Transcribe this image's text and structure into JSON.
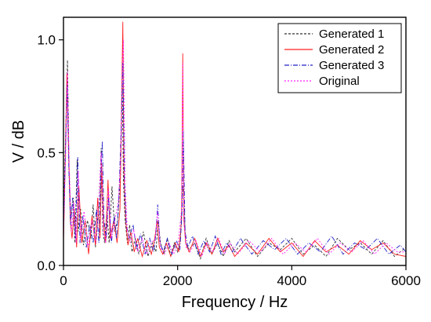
{
  "chart_data": {
    "type": "line",
    "xlabel": "Frequency / Hz",
    "ylabel": "V / dB",
    "xlim": [
      0,
      6000
    ],
    "ylim": [
      0,
      1.1
    ],
    "x_ticks": [
      0,
      2000,
      4000,
      6000
    ],
    "x_tick_labels": [
      "0",
      "2000",
      "4000",
      "6000"
    ],
    "y_ticks": [
      0.0,
      0.5,
      1.0
    ],
    "y_tick_labels": [
      "0.0",
      "0.5",
      "1.0"
    ],
    "grid": false,
    "legend_position": "top-right",
    "series": [
      {
        "name": "Generated 1",
        "color": "#303030",
        "dash": "3,2",
        "x": [
          0,
          40,
          70,
          100,
          130,
          170,
          200,
          240,
          260,
          300,
          350,
          420,
          480,
          520,
          560,
          600,
          640,
          660,
          690,
          720,
          760,
          800,
          850,
          900,
          950,
          1000,
          1030,
          1050,
          1080,
          1120,
          1160,
          1200,
          1260,
          1320,
          1400,
          1480,
          1560,
          1620,
          1660,
          1700,
          1760,
          1820,
          1880,
          1940,
          2000,
          2050,
          2080,
          2100,
          2140,
          2200,
          2300,
          2400,
          2500,
          2600,
          2700,
          2800,
          2900,
          3000,
          3200,
          3400,
          3600,
          3800,
          4000,
          4200,
          4400,
          4600,
          4800,
          5000,
          5200,
          5400,
          5600,
          5800,
          6000
        ],
        "y": [
          0.22,
          0.6,
          0.91,
          0.4,
          0.2,
          0.3,
          0.1,
          0.47,
          0.15,
          0.25,
          0.09,
          0.2,
          0.12,
          0.27,
          0.08,
          0.2,
          0.3,
          0.52,
          0.15,
          0.1,
          0.24,
          0.1,
          0.35,
          0.15,
          0.2,
          0.4,
          0.8,
          0.38,
          0.2,
          0.1,
          0.18,
          0.06,
          0.12,
          0.05,
          0.15,
          0.04,
          0.1,
          0.06,
          0.2,
          0.1,
          0.05,
          0.12,
          0.04,
          0.1,
          0.06,
          0.12,
          0.3,
          0.35,
          0.1,
          0.07,
          0.1,
          0.03,
          0.12,
          0.05,
          0.1,
          0.04,
          0.11,
          0.06,
          0.12,
          0.04,
          0.1,
          0.07,
          0.12,
          0.05,
          0.09,
          0.04,
          0.12,
          0.07,
          0.1,
          0.05,
          0.11,
          0.04,
          0.08
        ]
      },
      {
        "name": "Generated 2",
        "color": "#ff2020",
        "dash": "",
        "x": [
          0,
          30,
          60,
          90,
          120,
          150,
          190,
          230,
          270,
          320,
          380,
          440,
          500,
          560,
          600,
          640,
          670,
          700,
          740,
          780,
          820,
          880,
          940,
          990,
          1020,
          1040,
          1060,
          1090,
          1130,
          1180,
          1240,
          1300,
          1380,
          1460,
          1540,
          1600,
          1640,
          1680,
          1740,
          1800,
          1880,
          1960,
          2020,
          2070,
          2090,
          2110,
          2140,
          2200,
          2300,
          2400,
          2500,
          2600,
          2700,
          2800,
          2900,
          3000,
          3200,
          3400,
          3600,
          3800,
          4000,
          4200,
          4400,
          4600,
          4800,
          5000,
          5200,
          5400,
          5600,
          5800,
          6000
        ],
        "y": [
          0.1,
          0.45,
          0.85,
          0.5,
          0.2,
          0.12,
          0.25,
          0.08,
          0.35,
          0.1,
          0.2,
          0.05,
          0.22,
          0.09,
          0.3,
          0.12,
          0.45,
          0.2,
          0.1,
          0.38,
          0.12,
          0.2,
          0.1,
          0.25,
          0.75,
          1.08,
          0.4,
          0.2,
          0.09,
          0.15,
          0.06,
          0.12,
          0.04,
          0.11,
          0.05,
          0.12,
          0.2,
          0.08,
          0.05,
          0.1,
          0.04,
          0.1,
          0.06,
          0.2,
          0.94,
          0.2,
          0.1,
          0.06,
          0.12,
          0.04,
          0.1,
          0.05,
          0.12,
          0.06,
          0.09,
          0.04,
          0.1,
          0.05,
          0.12,
          0.06,
          0.1,
          0.04,
          0.11,
          0.06,
          0.09,
          0.05,
          0.11,
          0.07,
          0.1,
          0.05,
          0.04
        ]
      },
      {
        "name": "Generated 3",
        "color": "#2020c8",
        "dash": "6,2,1,2",
        "x": [
          0,
          35,
          65,
          95,
          125,
          160,
          210,
          250,
          290,
          340,
          400,
          460,
          520,
          580,
          620,
          650,
          680,
          710,
          750,
          790,
          840,
          890,
          930,
          970,
          1010,
          1040,
          1070,
          1100,
          1150,
          1220,
          1280,
          1350,
          1430,
          1510,
          1580,
          1620,
          1650,
          1690,
          1750,
          1820,
          1900,
          1980,
          2040,
          2080,
          2100,
          2130,
          2180,
          2260,
          2360,
          2460,
          2560,
          2660,
          2760,
          2860,
          2960,
          3100,
          3300,
          3500,
          3700,
          3900,
          4100,
          4300,
          4500,
          4700,
          4900,
          5100,
          5300,
          5500,
          5700,
          5900,
          6000
        ],
        "y": [
          0.15,
          0.5,
          0.8,
          0.42,
          0.18,
          0.3,
          0.12,
          0.48,
          0.1,
          0.22,
          0.08,
          0.18,
          0.1,
          0.25,
          0.1,
          0.35,
          0.55,
          0.2,
          0.12,
          0.3,
          0.1,
          0.22,
          0.12,
          0.3,
          0.6,
          0.9,
          0.35,
          0.18,
          0.12,
          0.18,
          0.07,
          0.14,
          0.05,
          0.12,
          0.06,
          0.14,
          0.27,
          0.1,
          0.06,
          0.12,
          0.05,
          0.11,
          0.07,
          0.25,
          0.6,
          0.15,
          0.08,
          0.13,
          0.05,
          0.11,
          0.06,
          0.13,
          0.05,
          0.1,
          0.06,
          0.12,
          0.05,
          0.11,
          0.07,
          0.12,
          0.05,
          0.1,
          0.06,
          0.13,
          0.05,
          0.1,
          0.07,
          0.12,
          0.05,
          0.09,
          0.06
        ]
      },
      {
        "name": "Original",
        "color": "#ff20ff",
        "dash": "2,2",
        "x": [
          0,
          40,
          70,
          100,
          140,
          180,
          220,
          260,
          300,
          360,
          430,
          500,
          570,
          620,
          660,
          700,
          740,
          790,
          840,
          900,
          960,
          1000,
          1030,
          1050,
          1080,
          1120,
          1170,
          1230,
          1300,
          1380,
          1460,
          1540,
          1610,
          1650,
          1700,
          1770,
          1850,
          1930,
          2010,
          2070,
          2090,
          2110,
          2150,
          2220,
          2320,
          2420,
          2520,
          2620,
          2720,
          2820,
          2920,
          3050,
          3250,
          3450,
          3650,
          3850,
          4050,
          4250,
          4450,
          4650,
          4850,
          5050,
          5250,
          5450,
          5650,
          5850,
          6000
        ],
        "y": [
          0.12,
          0.5,
          0.86,
          0.45,
          0.15,
          0.28,
          0.1,
          0.42,
          0.12,
          0.24,
          0.08,
          0.2,
          0.1,
          0.3,
          0.5,
          0.15,
          0.1,
          0.34,
          0.12,
          0.2,
          0.28,
          0.45,
          0.85,
          1.0,
          0.36,
          0.15,
          0.1,
          0.16,
          0.06,
          0.12,
          0.05,
          0.1,
          0.12,
          0.24,
          0.08,
          0.05,
          0.1,
          0.05,
          0.1,
          0.25,
          0.9,
          0.2,
          0.08,
          0.06,
          0.11,
          0.04,
          0.1,
          0.06,
          0.12,
          0.05,
          0.1,
          0.05,
          0.11,
          0.06,
          0.12,
          0.05,
          0.1,
          0.06,
          0.12,
          0.05,
          0.1,
          0.06,
          0.11,
          0.05,
          0.1,
          0.06,
          0.06
        ]
      }
    ]
  }
}
